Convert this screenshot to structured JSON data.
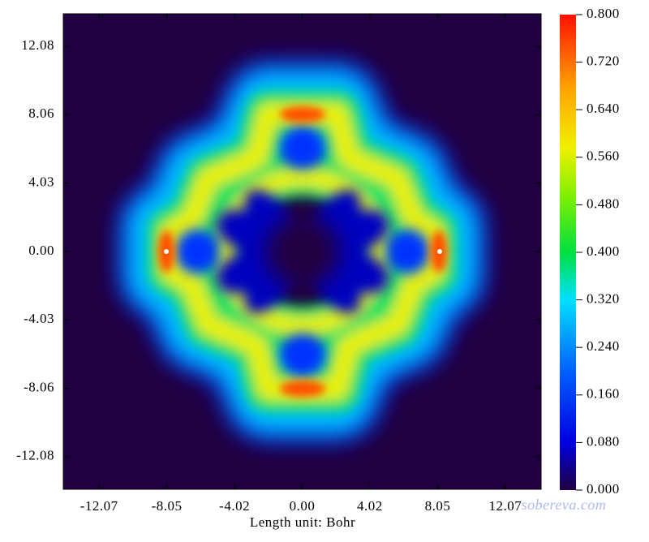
{
  "chart_data": {
    "type": "heatmap",
    "x_label": "Length unit: Bohr",
    "watermark": "sobereva.com",
    "xlim": [
      -14.2,
      14.2
    ],
    "xticks": [
      -12.07,
      -8.05,
      -4.02,
      {
        "value": 0,
        "label": "0.00"
      },
      4.02,
      8.05,
      12.07
    ],
    "ylim": [
      -14.0,
      14.0
    ],
    "yticks": [
      -12.08,
      -8.06,
      -4.03,
      {
        "value": 0,
        "label": "0.00"
      },
      4.03,
      8.06,
      12.08
    ],
    "zlim": [
      0,
      0.8
    ],
    "zticks": [
      {
        "value": 0,
        "label": "0.000"
      },
      {
        "value": 0.08,
        "label": "0.080"
      },
      {
        "value": 0.16,
        "label": "0.160"
      },
      {
        "value": 0.24,
        "label": "0.240"
      },
      {
        "value": 0.32,
        "label": "0.320"
      },
      {
        "value": 0.4,
        "label": "0.400"
      },
      {
        "value": 0.48,
        "label": "0.480"
      },
      {
        "value": 0.56,
        "label": "0.560"
      },
      {
        "value": 0.64,
        "label": "0.640"
      },
      {
        "value": 0.72,
        "label": "0.720"
      },
      {
        "value": 0.8,
        "label": "0.800"
      }
    ]
  }
}
